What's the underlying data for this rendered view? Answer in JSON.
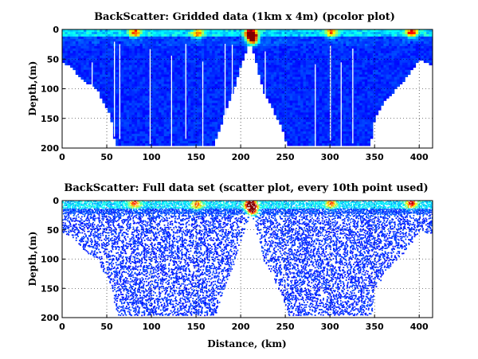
{
  "chart_data": [
    {
      "type": "heatmap",
      "title": "BackScatter: Gridded data (1km x 4m) (pcolor plot)",
      "xlabel": "",
      "ylabel": "Depth,(m)",
      "xlim": [
        0,
        415
      ],
      "ylim": [
        0,
        200
      ],
      "y_reversed": true,
      "grid": true,
      "xticks": [
        "0",
        "50",
        "100",
        "150",
        "200",
        "250",
        "300",
        "350",
        "400"
      ],
      "yticks": [
        "0",
        "50",
        "100",
        "150",
        "200"
      ],
      "colormap": "jet",
      "bottom_profile": [
        [
          0,
          55
        ],
        [
          10,
          60
        ],
        [
          20,
          80
        ],
        [
          30,
          90
        ],
        [
          40,
          100
        ],
        [
          45,
          120
        ],
        [
          50,
          130
        ],
        [
          55,
          150
        ],
        [
          60,
          195
        ],
        [
          170,
          195
        ],
        [
          180,
          150
        ],
        [
          190,
          110
        ],
        [
          200,
          60
        ],
        [
          205,
          40
        ],
        [
          210,
          20
        ],
        [
          215,
          40
        ],
        [
          225,
          100
        ],
        [
          235,
          130
        ],
        [
          245,
          160
        ],
        [
          253,
          195
        ],
        [
          345,
          195
        ],
        [
          350,
          150
        ],
        [
          360,
          120
        ],
        [
          370,
          105
        ],
        [
          380,
          90
        ],
        [
          390,
          70
        ],
        [
          400,
          50
        ],
        [
          410,
          55
        ],
        [
          415,
          60
        ]
      ],
      "hotspots": [
        {
          "x": 210,
          "depth": 5,
          "level": 0.95
        },
        {
          "x": 212,
          "depth": 15,
          "level": 0.85
        },
        {
          "x": 390,
          "depth": 3,
          "level": 0.6
        },
        {
          "x": 80,
          "depth": 3,
          "level": 0.5
        },
        {
          "x": 150,
          "depth": 5,
          "level": 0.45
        },
        {
          "x": 300,
          "depth": 3,
          "level": 0.45
        }
      ]
    },
    {
      "type": "scatter",
      "title": "BackScatter: Full data set (scatter plot, every 10th point used)",
      "xlabel": "Distance, (km)",
      "ylabel": "Depth,(m)",
      "xlim": [
        0,
        415
      ],
      "ylim": [
        0,
        200
      ],
      "y_reversed": true,
      "grid": true,
      "xticks": [
        "0",
        "50",
        "100",
        "150",
        "200",
        "250",
        "300",
        "350",
        "400"
      ],
      "yticks": [
        "0",
        "50",
        "100",
        "150",
        "200"
      ],
      "colormap": "jet"
    }
  ],
  "colors": {
    "background": "#ffffff",
    "field_low": "#0000a8",
    "field_mid": "#0050ff",
    "hot": "#ff2000"
  }
}
